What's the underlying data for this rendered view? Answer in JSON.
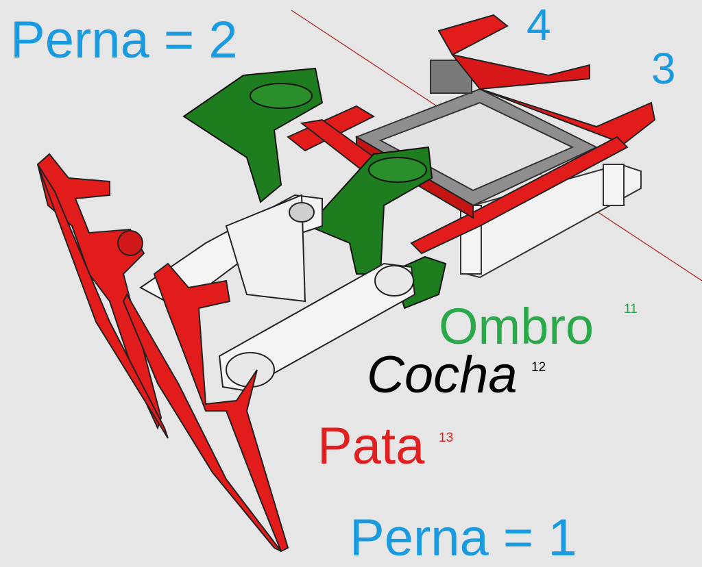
{
  "labels": {
    "perna_top": "Perna = 2",
    "perna_bottom": "Perna = 1",
    "num_4": "4",
    "num_3": "3",
    "ombro": "Ombro",
    "ombro_ref": "11",
    "cocha": "Cocha",
    "cocha_ref": "12",
    "pata": "Pata",
    "pata_ref": "13"
  },
  "colors": {
    "background": "#e6e6e6",
    "blue_text": "#1a9be0",
    "green_text": "#2aa84a",
    "red_text": "#e02020",
    "black_text": "#000000",
    "part_red": "#e21b1b",
    "part_green": "#1e7d1e",
    "part_white": "#f4f4f4",
    "part_gray": "#9a9a9a"
  }
}
